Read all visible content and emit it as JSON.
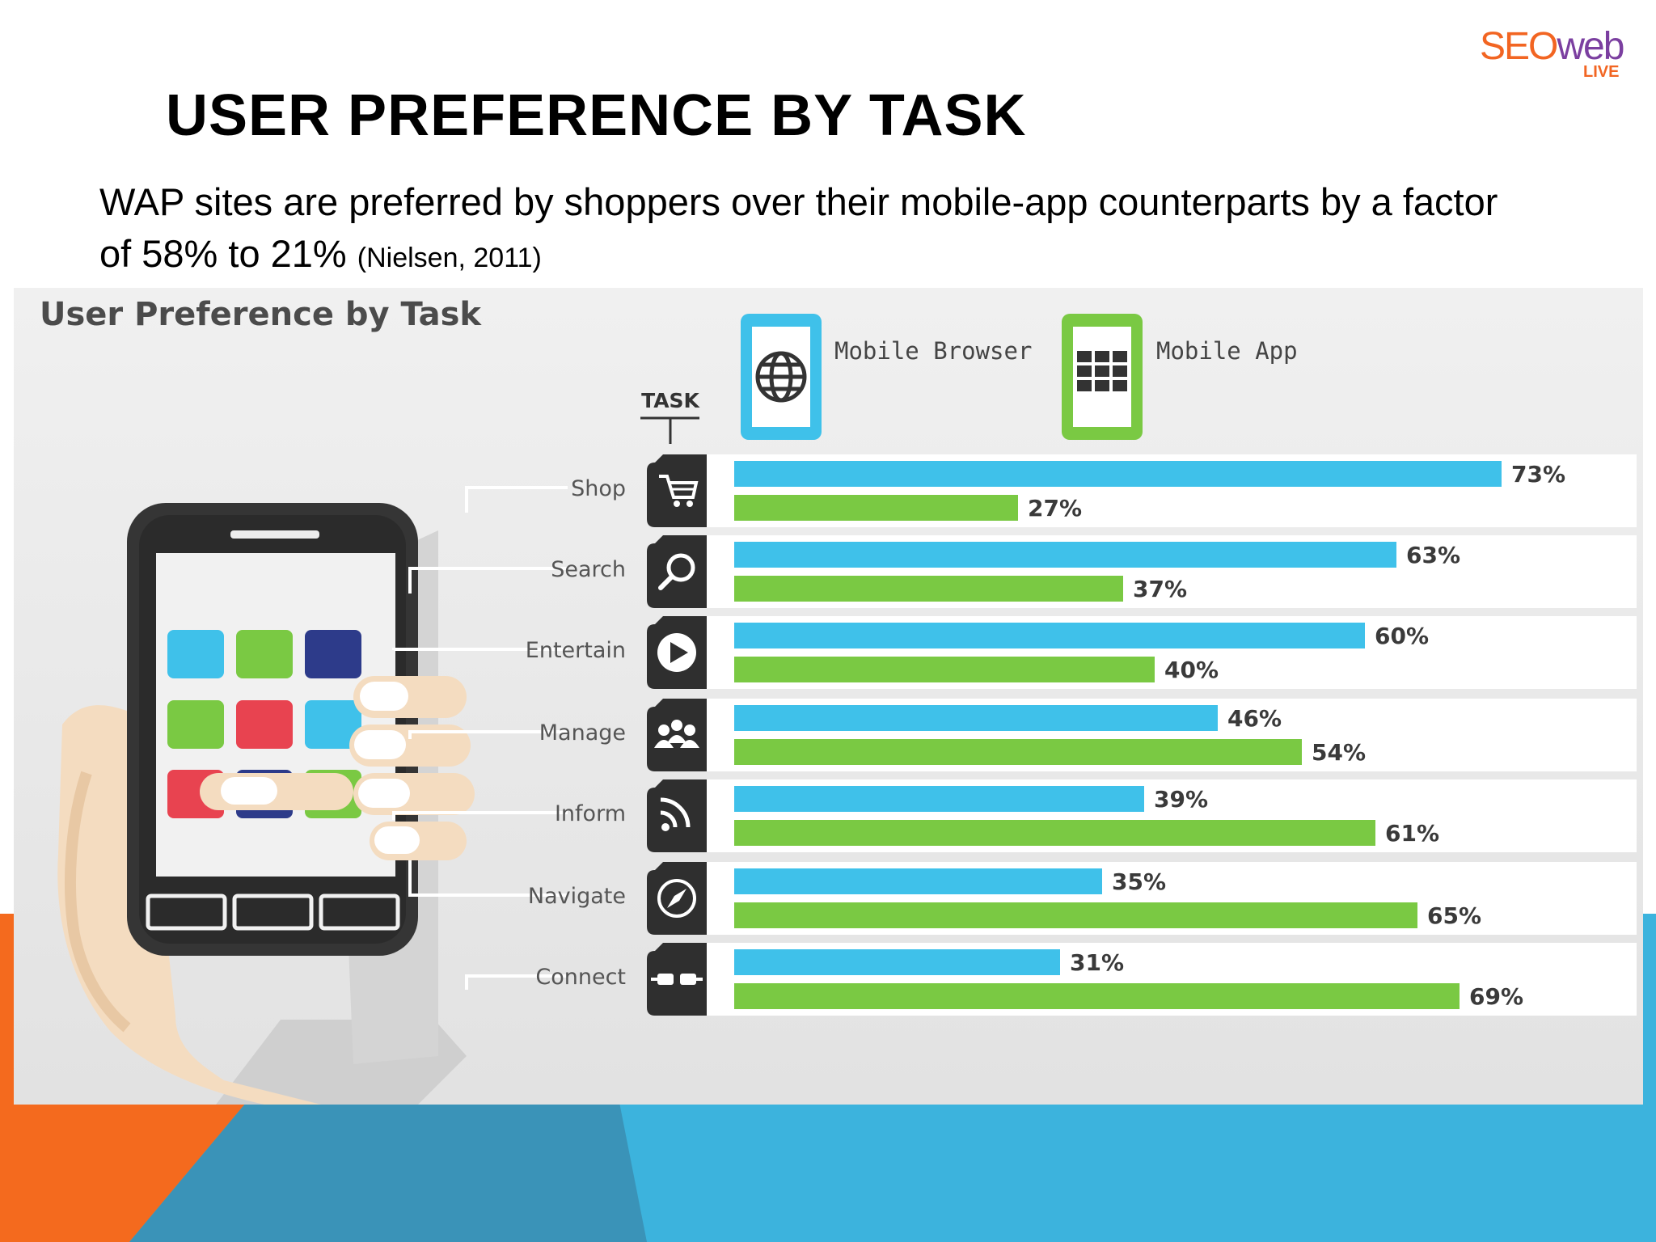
{
  "slide": {
    "title": "USER PREFERENCE BY TASK",
    "subtitle": "WAP sites are preferred by shoppers over their mobile-app counterparts by a factor of 58% to 21%",
    "citation": "(Nielsen, 2011)",
    "logo": {
      "main": "SEO",
      "accent": "web",
      "sub": "LIVE"
    },
    "colors": {
      "orange": "#f46a1e",
      "blue": "#3cb3dd",
      "steel": "#3a93b8"
    }
  },
  "chart_data": {
    "type": "bar",
    "title": "User Preference by Task",
    "axis_label": "TASK",
    "categories": [
      "Shop",
      "Search",
      "Entertain",
      "Manage",
      "Inform",
      "Navigate",
      "Connect"
    ],
    "category_icons": [
      "cart-icon",
      "search-icon",
      "play-icon",
      "group-icon",
      "rss-icon",
      "compass-icon",
      "plug-icon"
    ],
    "series": [
      {
        "name": "Mobile Browser",
        "icon": "globe-icon",
        "color": "#3fc1ea",
        "values": [
          73,
          63,
          60,
          46,
          39,
          35,
          31
        ]
      },
      {
        "name": "Mobile App",
        "icon": "app-grid-icon",
        "color": "#7ac943",
        "values": [
          27,
          37,
          40,
          54,
          61,
          65,
          69
        ]
      }
    ],
    "value_suffix": "%",
    "xlim": [
      0,
      100
    ]
  }
}
